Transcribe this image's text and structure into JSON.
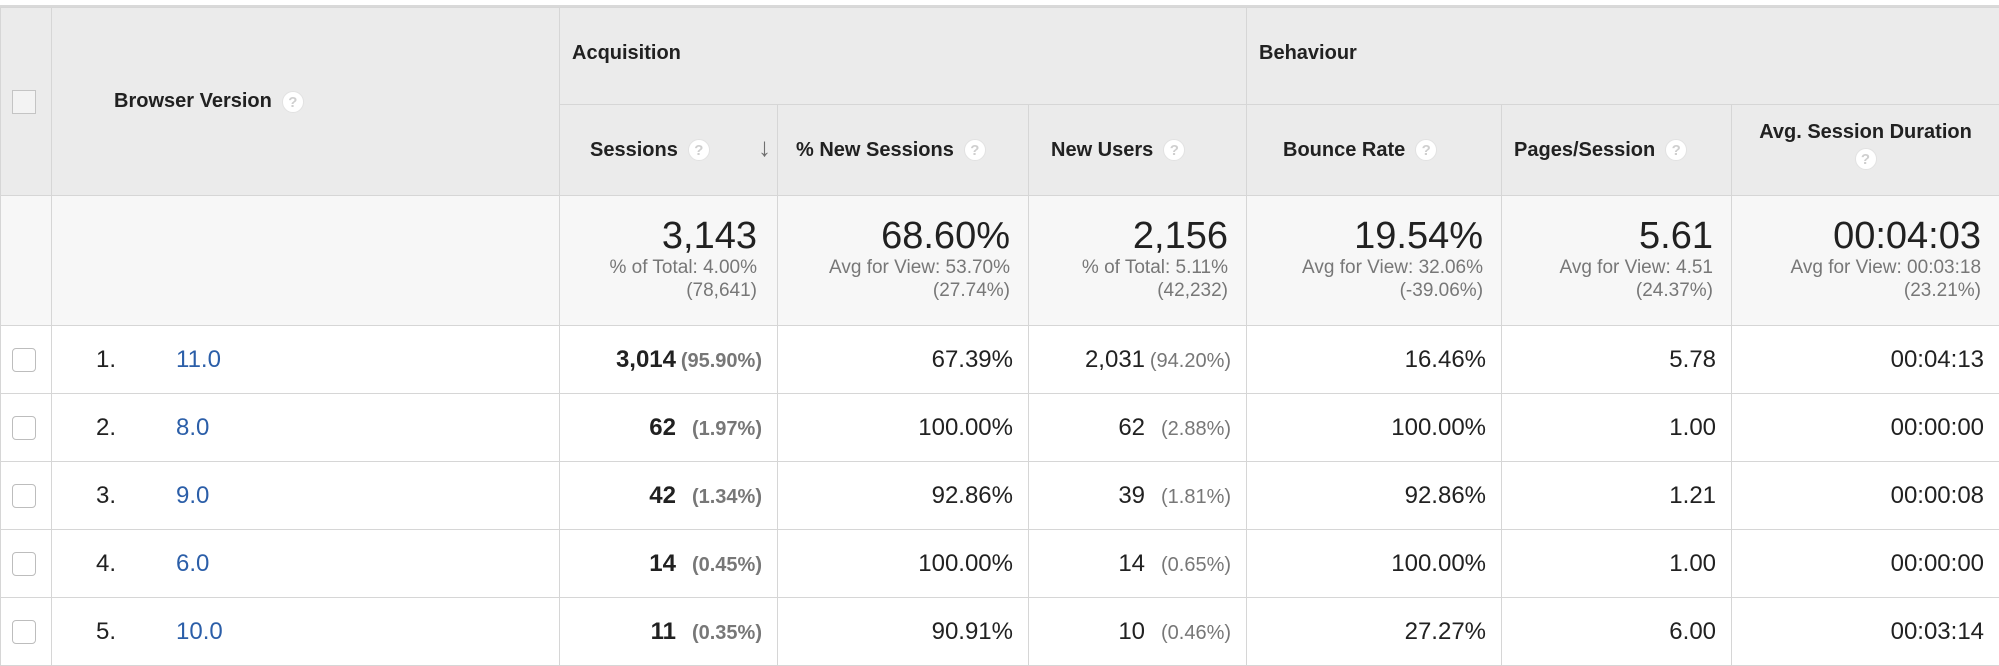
{
  "header": {
    "dimension_label": "Browser Version",
    "groups": [
      {
        "label": "Acquisition"
      },
      {
        "label": "Behaviour"
      }
    ],
    "columns": [
      {
        "label": "Sessions"
      },
      {
        "label": "% New Sessions"
      },
      {
        "label": "New Users"
      },
      {
        "label": "Bounce Rate"
      },
      {
        "label": "Pages/Session"
      },
      {
        "label": "Avg. Session Duration"
      }
    ],
    "help_glyph": "?",
    "sort_glyph": "↓"
  },
  "totals": [
    {
      "value": "3,143",
      "line1": "% of Total: 4.00%",
      "line2": "(78,641)"
    },
    {
      "value": "68.60%",
      "line1": "Avg for View: 53.70%",
      "line2": "(27.74%)"
    },
    {
      "value": "2,156",
      "line1": "% of Total: 5.11%",
      "line2": "(42,232)"
    },
    {
      "value": "19.54%",
      "line1": "Avg for View: 32.06%",
      "line2": "(-39.06%)"
    },
    {
      "value": "5.61",
      "line1": "Avg for View: 4.51",
      "line2": "(24.37%)"
    },
    {
      "value": "00:04:03",
      "line1": "Avg for View: 00:03:18",
      "line2": "(23.21%)"
    }
  ],
  "rows": [
    {
      "index": "1.",
      "version": "11.0",
      "sessions": "3,014",
      "sessions_pct": "(95.90%)",
      "new_sessions": "67.39%",
      "new_users": "2,031",
      "new_users_pct": "(94.20%)",
      "bounce_rate": "16.46%",
      "pages_session": "5.78",
      "avg_duration": "00:04:13"
    },
    {
      "index": "2.",
      "version": "8.0",
      "sessions": "62",
      "sessions_pct": "(1.97%)",
      "new_sessions": "100.00%",
      "new_users": "62",
      "new_users_pct": "(2.88%)",
      "bounce_rate": "100.00%",
      "pages_session": "1.00",
      "avg_duration": "00:00:00"
    },
    {
      "index": "3.",
      "version": "9.0",
      "sessions": "42",
      "sessions_pct": "(1.34%)",
      "new_sessions": "92.86%",
      "new_users": "39",
      "new_users_pct": "(1.81%)",
      "bounce_rate": "92.86%",
      "pages_session": "1.21",
      "avg_duration": "00:00:08"
    },
    {
      "index": "4.",
      "version": "6.0",
      "sessions": "14",
      "sessions_pct": "(0.45%)",
      "new_sessions": "100.00%",
      "new_users": "14",
      "new_users_pct": "(0.65%)",
      "bounce_rate": "100.00%",
      "pages_session": "1.00",
      "avg_duration": "00:00:00"
    },
    {
      "index": "5.",
      "version": "10.0",
      "sessions": "11",
      "sessions_pct": "(0.35%)",
      "new_sessions": "90.91%",
      "new_users": "10",
      "new_users_pct": "(0.46%)",
      "bounce_rate": "27.27%",
      "pages_session": "6.00",
      "avg_duration": "00:03:14"
    }
  ],
  "colors": {
    "link": "#2b5ea8",
    "header_bg": "#ebebeb",
    "muted_text": "#777777"
  }
}
